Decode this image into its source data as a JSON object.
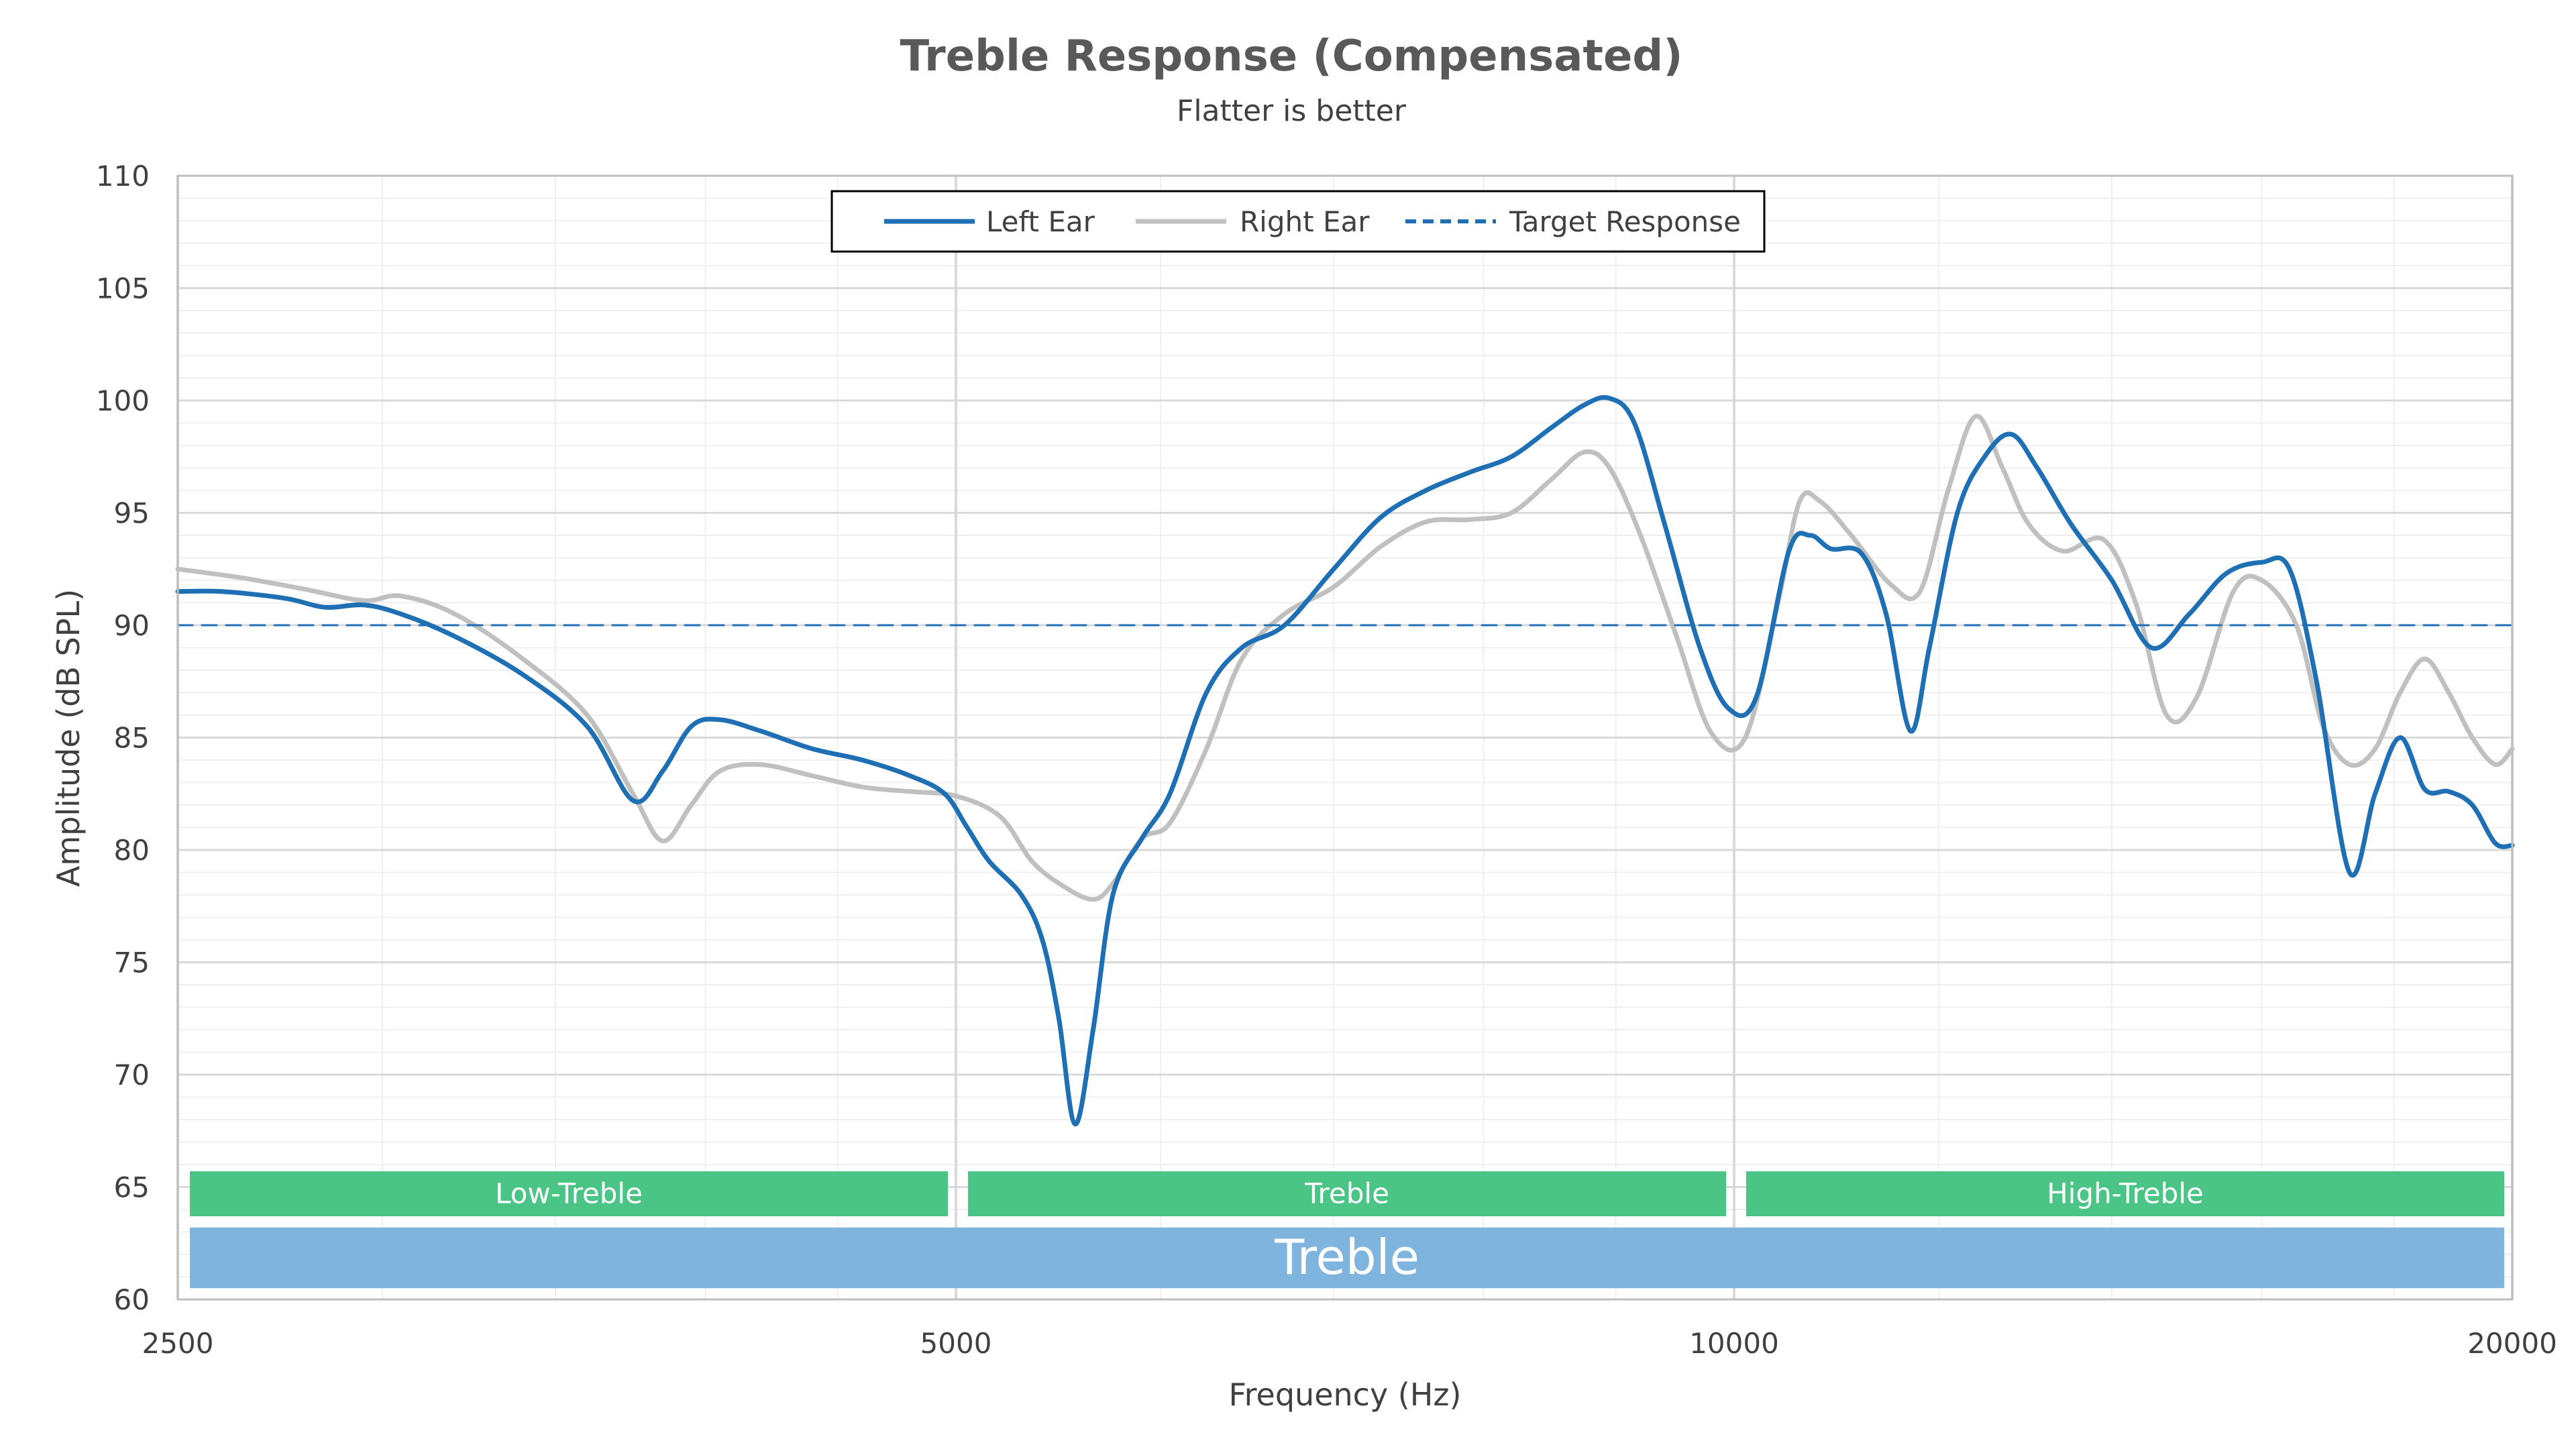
{
  "chart_data": {
    "type": "line",
    "title": "Treble Response (Compensated)",
    "subtitle": "Flatter is better",
    "xlabel": "Frequency (Hz)",
    "ylabel": "Amplitude (dB SPL)",
    "x_scale": "log",
    "xlim": [
      2500,
      20000
    ],
    "ylim": [
      60,
      110
    ],
    "x_ticks": [
      2500,
      5000,
      10000,
      20000
    ],
    "x_tick_labels": [
      "2500",
      "5000",
      "10000",
      "20000"
    ],
    "y_ticks": [
      60,
      65,
      70,
      75,
      80,
      85,
      90,
      95,
      100,
      105,
      110
    ],
    "y_tick_labels": [
      "60",
      "65",
      "70",
      "75",
      "80",
      "85",
      "90",
      "95",
      "100",
      "105",
      "110"
    ],
    "grid": true,
    "legend_position": "top-center",
    "legend": [
      "Left Ear",
      "Right Ear",
      "Target Response"
    ],
    "series": [
      {
        "name": "Left Ear",
        "color": "#1f6fb4",
        "style": "solid",
        "points": [
          [
            2500,
            91.5
          ],
          [
            2600,
            91.5
          ],
          [
            2750,
            91.2
          ],
          [
            2850,
            90.8
          ],
          [
            2950,
            90.9
          ],
          [
            3050,
            90.5
          ],
          [
            3200,
            89.5
          ],
          [
            3400,
            87.8
          ],
          [
            3600,
            85.5
          ],
          [
            3750,
            82.2
          ],
          [
            3850,
            83.5
          ],
          [
            3950,
            85.5
          ],
          [
            4050,
            85.8
          ],
          [
            4200,
            85.3
          ],
          [
            4400,
            84.5
          ],
          [
            4600,
            84.0
          ],
          [
            4800,
            83.3
          ],
          [
            4950,
            82.5
          ],
          [
            5050,
            81.0
          ],
          [
            5150,
            79.5
          ],
          [
            5300,
            78.0
          ],
          [
            5400,
            76.0
          ],
          [
            5480,
            72.5
          ],
          [
            5560,
            67.8
          ],
          [
            5650,
            72.0
          ],
          [
            5750,
            78.0
          ],
          [
            5900,
            80.5
          ],
          [
            6050,
            82.5
          ],
          [
            6250,
            87.0
          ],
          [
            6450,
            89.0
          ],
          [
            6700,
            90.0
          ],
          [
            7000,
            92.5
          ],
          [
            7300,
            94.8
          ],
          [
            7600,
            96.0
          ],
          [
            7900,
            96.8
          ],
          [
            8200,
            97.5
          ],
          [
            8500,
            98.8
          ],
          [
            8750,
            99.8
          ],
          [
            8950,
            100.1
          ],
          [
            9150,
            99.0
          ],
          [
            9400,
            94.5
          ],
          [
            9700,
            89.0
          ],
          [
            9950,
            86.3
          ],
          [
            10200,
            86.8
          ],
          [
            10500,
            93.3
          ],
          [
            10700,
            94.0
          ],
          [
            10900,
            93.4
          ],
          [
            11200,
            93.2
          ],
          [
            11450,
            90.5
          ],
          [
            11700,
            85.3
          ],
          [
            11900,
            89.0
          ],
          [
            12200,
            95.0
          ],
          [
            12500,
            97.5
          ],
          [
            12800,
            98.5
          ],
          [
            13100,
            97.0
          ],
          [
            13500,
            94.5
          ],
          [
            14000,
            92.0
          ],
          [
            14500,
            89.0
          ],
          [
            15000,
            90.5
          ],
          [
            15500,
            92.3
          ],
          [
            16000,
            92.8
          ],
          [
            16400,
            92.5
          ],
          [
            16800,
            87.5
          ],
          [
            17300,
            79.0
          ],
          [
            17700,
            82.5
          ],
          [
            18100,
            85.0
          ],
          [
            18500,
            82.7
          ],
          [
            18900,
            82.6
          ],
          [
            19300,
            82.0
          ],
          [
            19700,
            80.3
          ],
          [
            20000,
            80.2
          ]
        ]
      },
      {
        "name": "Right Ear",
        "color": "#c0c0c0",
        "style": "solid",
        "points": [
          [
            2500,
            92.5
          ],
          [
            2650,
            92.1
          ],
          [
            2800,
            91.6
          ],
          [
            2950,
            91.1
          ],
          [
            3050,
            91.3
          ],
          [
            3200,
            90.5
          ],
          [
            3400,
            88.5
          ],
          [
            3600,
            86.0
          ],
          [
            3750,
            82.5
          ],
          [
            3850,
            80.4
          ],
          [
            3950,
            82.0
          ],
          [
            4050,
            83.5
          ],
          [
            4200,
            83.8
          ],
          [
            4400,
            83.3
          ],
          [
            4600,
            82.8
          ],
          [
            4800,
            82.6
          ],
          [
            5000,
            82.4
          ],
          [
            5200,
            81.5
          ],
          [
            5350,
            79.5
          ],
          [
            5500,
            78.4
          ],
          [
            5650,
            77.8
          ],
          [
            5750,
            78.5
          ],
          [
            5900,
            80.5
          ],
          [
            6050,
            81.2
          ],
          [
            6250,
            84.5
          ],
          [
            6450,
            88.5
          ],
          [
            6700,
            90.5
          ],
          [
            7000,
            91.7
          ],
          [
            7300,
            93.5
          ],
          [
            7600,
            94.6
          ],
          [
            7900,
            94.7
          ],
          [
            8200,
            95.0
          ],
          [
            8500,
            96.5
          ],
          [
            8750,
            97.7
          ],
          [
            8950,
            97.0
          ],
          [
            9200,
            94.0
          ],
          [
            9500,
            89.5
          ],
          [
            9800,
            85.2
          ],
          [
            10100,
            85.0
          ],
          [
            10400,
            91.0
          ],
          [
            10600,
            95.5
          ],
          [
            10800,
            95.5
          ],
          [
            11100,
            94.0
          ],
          [
            11500,
            91.8
          ],
          [
            11800,
            91.5
          ],
          [
            12100,
            96.0
          ],
          [
            12400,
            99.3
          ],
          [
            12700,
            97.0
          ],
          [
            13000,
            94.5
          ],
          [
            13400,
            93.3
          ],
          [
            13900,
            93.8
          ],
          [
            14300,
            91.0
          ],
          [
            14700,
            86.0
          ],
          [
            15100,
            86.8
          ],
          [
            15600,
            91.5
          ],
          [
            16000,
            92.0
          ],
          [
            16500,
            90.0
          ],
          [
            16900,
            85.5
          ],
          [
            17300,
            83.8
          ],
          [
            17700,
            84.5
          ],
          [
            18100,
            87.0
          ],
          [
            18500,
            88.5
          ],
          [
            18900,
            87.0
          ],
          [
            19300,
            85.0
          ],
          [
            19700,
            83.8
          ],
          [
            20000,
            84.5
          ]
        ]
      },
      {
        "name": "Target Response",
        "color": "#1f6fb4",
        "style": "dashed",
        "points": [
          [
            2500,
            90
          ],
          [
            20000,
            90
          ]
        ]
      }
    ],
    "bands": [
      {
        "label": "Low-Treble",
        "from": 2500,
        "to": 5000,
        "color": "#4bc585"
      },
      {
        "label": "Treble",
        "from": 5000,
        "to": 10000,
        "color": "#4bc585"
      },
      {
        "label": "High-Treble",
        "from": 10000,
        "to": 20000,
        "color": "#4bc585"
      },
      {
        "label": "Treble",
        "from": 2500,
        "to": 20000,
        "color": "#7fb4de"
      }
    ]
  }
}
